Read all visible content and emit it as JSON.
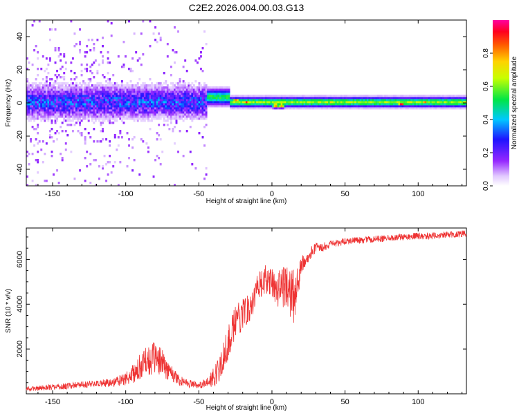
{
  "title": "C2E2.2026.004.00.03.G13",
  "colors": {
    "signal": "#ee3333",
    "axis": "#000000"
  },
  "chart_data": [
    {
      "type": "heatmap",
      "title": "C2E2.2026.004.00.03.G13",
      "xlabel": "Height of straight line (km)",
      "ylabel": "Frequency (Hz)",
      "xlim": [
        -168,
        133
      ],
      "ylim": [
        -50,
        50
      ],
      "xticks": [
        -150,
        -100,
        -50,
        0,
        50,
        100
      ],
      "yticks": [
        -40,
        -20,
        0,
        20,
        40
      ],
      "colorbar": {
        "label": "Normalized spectral amplitude",
        "range": [
          0,
          1
        ],
        "ticks": [
          0.0,
          0.2,
          0.4,
          0.6,
          0.8
        ],
        "colormap": "rainbow (white-violet-blue-cyan-green-yellow-orange-red-magenta)"
      },
      "bands": [
        {
          "x_from": -168,
          "x_to": -45,
          "center_hz": 0,
          "halfwidth_hz": 8,
          "amplitude": 0.3,
          "note": "noisy, scattered spectral energy up to +/-50 Hz"
        },
        {
          "x_from": -45,
          "x_to": -30,
          "center_hz": 3,
          "halfwidth_hz": 4,
          "amplitude": 0.55
        },
        {
          "x_from": -30,
          "x_to": 133,
          "center_hz": 0,
          "halfwidth_hz": 2.5,
          "amplitude": 0.65,
          "note": "narrow stable line"
        }
      ],
      "hotspots": [
        {
          "x": -25,
          "freq": 1,
          "amplitude": 0.85
        },
        {
          "x": -18,
          "freq": 0,
          "amplitude": 0.9
        },
        {
          "x": 2,
          "freq": -2,
          "amplitude": 0.95
        },
        {
          "x": 6,
          "freq": -2,
          "amplitude": 0.9
        },
        {
          "x": 40,
          "freq": 0,
          "amplitude": 0.75
        },
        {
          "x": 88,
          "freq": -1,
          "amplitude": 1.0
        },
        {
          "x": 104,
          "freq": 0,
          "amplitude": 0.85
        }
      ]
    },
    {
      "type": "line",
      "xlabel": "Height of straight line (km)",
      "ylabel": "SNR (10 * v/v)",
      "xlim": [
        -168,
        133
      ],
      "ylim": [
        0,
        7400
      ],
      "xticks": [
        -150,
        -100,
        -50,
        0,
        50,
        100
      ],
      "yticks": [
        2000,
        4000,
        6000
      ],
      "series": [
        {
          "name": "SNR",
          "color": "#ee3333",
          "x": [
            -168,
            -160,
            -150,
            -140,
            -130,
            -120,
            -110,
            -100,
            -95,
            -90,
            -85,
            -80,
            -75,
            -70,
            -65,
            -60,
            -55,
            -50,
            -45,
            -40,
            -35,
            -30,
            -25,
            -20,
            -15,
            -10,
            -5,
            0,
            5,
            10,
            15,
            20,
            25,
            30,
            40,
            50,
            60,
            70,
            80,
            90,
            100,
            110,
            120,
            133
          ],
          "values": [
            200,
            250,
            300,
            350,
            420,
            450,
            500,
            650,
            900,
            1200,
            1500,
            1600,
            1400,
            1000,
            700,
            500,
            450,
            400,
            450,
            700,
            1300,
            2300,
            3100,
            3600,
            3900,
            4600,
            5100,
            4900,
            4700,
            4800,
            4300,
            5600,
            6200,
            6500,
            6650,
            6800,
            6850,
            6900,
            6950,
            7000,
            7050,
            7050,
            7100,
            7150
          ],
          "noise": [
            120,
            120,
            130,
            140,
            150,
            160,
            180,
            300,
            450,
            600,
            700,
            700,
            600,
            450,
            300,
            220,
            180,
            160,
            200,
            450,
            700,
            800,
            800,
            700,
            650,
            700,
            650,
            700,
            900,
            1000,
            1300,
            500,
            300,
            220,
            180,
            150,
            150,
            150,
            150,
            150,
            150,
            150,
            150,
            150
          ]
        }
      ]
    }
  ]
}
